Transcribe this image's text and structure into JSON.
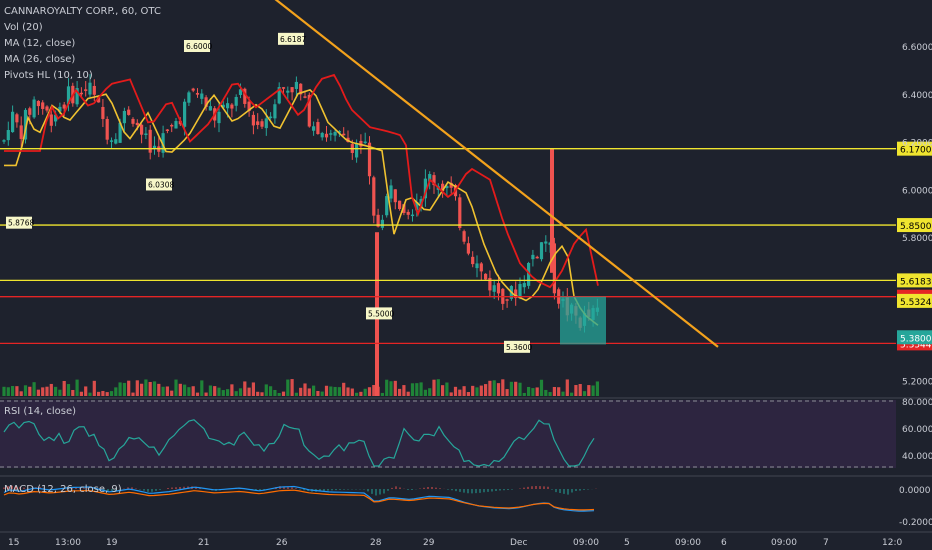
{
  "legend": {
    "title": "CANNAROYALTY CORP., 60, OTC",
    "vol": "Vol (20)",
    "ma12": "MA (12, close)",
    "ma26": "MA (26, close)",
    "pivots": "Pivots HL (10, 10)"
  },
  "rsi_label": "RSI (14, close)",
  "macd_label": "MACD (12, 26, close, 9)",
  "colors": {
    "bg": "#1e222d",
    "up": "#26a69a",
    "up_solid": "#1f8f3a",
    "down": "#ef5350",
    "ma12": "#f0c230",
    "ma26": "#e31b1b",
    "trend": "#f3a21c",
    "hline_yellow": "#f0e52f",
    "hline_red": "#e52525",
    "rsi_band": "#2d2540",
    "macd": "#2196f3",
    "signal": "#ff6d00"
  },
  "chart_data": {
    "type": "candlestick",
    "price_axis": {
      "ticks": [
        "6.6000",
        "6.4000",
        "6.2000",
        "6.0000",
        "5.8000",
        "5.2000"
      ],
      "ylim": [
        5.16,
        6.82
      ]
    },
    "x_ticks": [
      "15",
      "13:00",
      "19",
      "21",
      "26",
      "28",
      "29",
      "Dec",
      "09:00",
      "5",
      "09:00",
      "6",
      "09:00",
      "7",
      "12:0"
    ],
    "hlines": [
      {
        "price": 6.17,
        "label": "6.1700",
        "color": "yellow"
      },
      {
        "price": 5.85,
        "label": "5.8500",
        "color": "yellow"
      },
      {
        "price": 5.6183,
        "label": "5.6183",
        "color": "yellow"
      },
      {
        "price": 5.55,
        "label": "5.5500",
        "color": "red"
      },
      {
        "price": 5.3544,
        "label": "5.3544",
        "color": "red"
      }
    ],
    "price_labels": [
      {
        "price": 5.5324,
        "label": "5.5324",
        "color": "yellow"
      },
      {
        "price": 5.38,
        "label": "5.3800",
        "color": "teal"
      }
    ],
    "pivot_labels": [
      "6.6000",
      "6.6187",
      "6.0308",
      "5.8768",
      "5.5000",
      "5.3600"
    ],
    "trendline": {
      "from": [
        "2018-11-26",
        6.83
      ],
      "to": [
        "2018-12-06",
        5.33
      ]
    },
    "rsi_axis": [
      "80.0000",
      "60.0000",
      "40.0000"
    ],
    "macd_axis": [
      "0.0000",
      "-0.2000"
    ]
  }
}
